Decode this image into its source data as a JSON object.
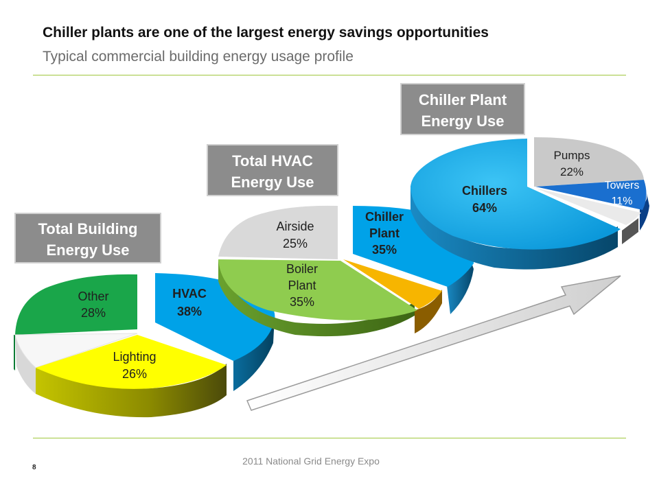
{
  "header": {
    "title": "Chiller plants are one of the largest energy savings opportunities",
    "subtitle": "Typical commercial building energy usage profile"
  },
  "footer": {
    "text": "2011 National Grid Energy Expo",
    "page_number": "8"
  },
  "colors": {
    "accent_rule": "#9fc63b",
    "label_box": "#8c8c8c",
    "hvac": "#00a2e8",
    "other": "#1aa64a",
    "lighting": "#ffff00",
    "remainder": "#f4f4f4",
    "boiler": "#8fcc4f",
    "airside": "#d9d9d9",
    "chiller_plant": "#00a2e8",
    "orange_wedge": "#f7b500",
    "chillers": "#0fa6e8",
    "pumps": "#c9c9c9",
    "towers": "#1a6fcf",
    "sliver": "#e4e4e4"
  },
  "chart_data": [
    {
      "type": "pie",
      "title": "Total Building Energy Use",
      "slices": [
        {
          "name": "HVAC",
          "value": 38,
          "label": "HVAC",
          "value_label": "38%"
        },
        {
          "name": "Lighting",
          "value": 26,
          "label": "Lighting",
          "value_label": "26%"
        },
        {
          "name": "unlabeled",
          "value": 8,
          "label": "",
          "value_label": ""
        },
        {
          "name": "Other",
          "value": 28,
          "label": "Other",
          "value_label": "28%"
        }
      ]
    },
    {
      "type": "pie",
      "title": "Total HVAC Energy Use",
      "slices": [
        {
          "name": "Chiller Plant",
          "value": 35,
          "label": "Chiller Plant",
          "value_label": "35%"
        },
        {
          "name": "unlabeled",
          "value": 5,
          "label": "",
          "value_label": ""
        },
        {
          "name": "Boiler Plant",
          "value": 35,
          "label": "Boiler Plant",
          "value_label": "35%"
        },
        {
          "name": "Airside",
          "value": 25,
          "label": "Airside",
          "value_label": "25%"
        }
      ]
    },
    {
      "type": "pie",
      "title": "Chiller Plant Energy Use",
      "slices": [
        {
          "name": "Pumps",
          "value": 22,
          "label": "Pumps",
          "value_label": "22%"
        },
        {
          "name": "Towers",
          "value": 11,
          "label": "Towers",
          "value_label": "11%"
        },
        {
          "name": "unlabeled",
          "value": 3,
          "label": "",
          "value_label": ""
        },
        {
          "name": "Chillers",
          "value": 64,
          "label": "Chillers",
          "value_label": "64%"
        }
      ]
    }
  ],
  "stage_labels": [
    {
      "line1": "Total Building",
      "line2": "Energy Use"
    },
    {
      "line1": "Total HVAC",
      "line2": "Energy Use"
    },
    {
      "line1": "Chiller Plant",
      "line2": "Energy Use"
    }
  ],
  "slice_labels": {
    "other": [
      "Other",
      "28%"
    ],
    "lighting": [
      "Lighting",
      "26%"
    ],
    "hvac": [
      "HVAC",
      "38%"
    ],
    "airside": [
      "Airside",
      "25%"
    ],
    "boiler": [
      "Boiler",
      "Plant",
      "35%"
    ],
    "chiller_plant": [
      "Chiller",
      "Plant",
      "35%"
    ],
    "chillers": [
      "Chillers",
      "64%"
    ],
    "pumps": [
      "Pumps",
      "22%"
    ],
    "towers": [
      "Towers",
      "11%"
    ]
  }
}
